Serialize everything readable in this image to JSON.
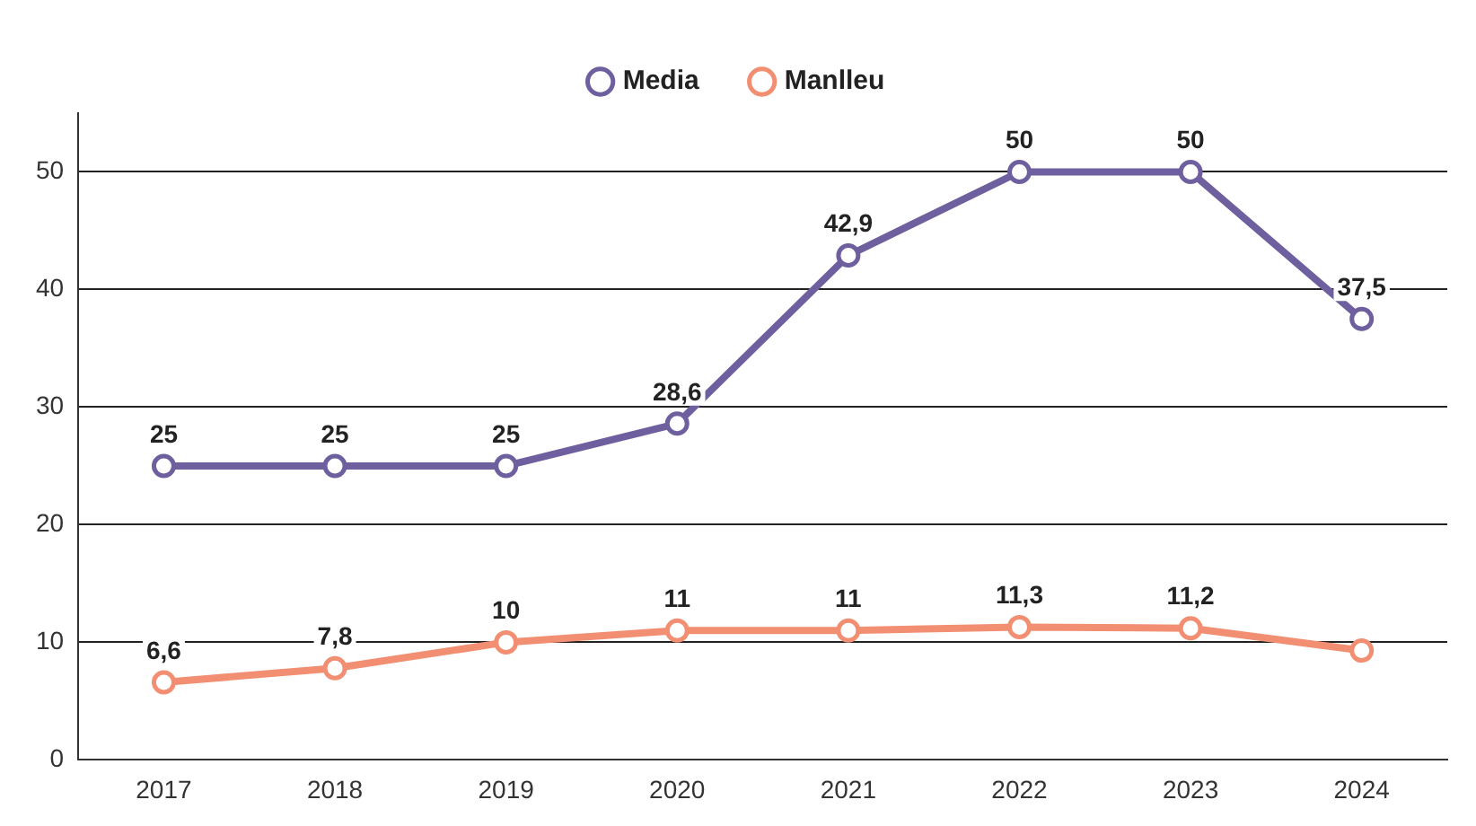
{
  "chart_data": {
    "type": "line",
    "categories": [
      "2017",
      "2018",
      "2019",
      "2020",
      "2021",
      "2022",
      "2023",
      "2024"
    ],
    "series": [
      {
        "name": "Media",
        "color": "#6e5f9e",
        "values": [
          25,
          25,
          25,
          28.6,
          42.9,
          50,
          50,
          37.5
        ],
        "value_labels": [
          "25",
          "25",
          "25",
          "28,6",
          "42,9",
          "50",
          "50",
          "37,5"
        ]
      },
      {
        "name": "Manlleu",
        "color": "#f28f72",
        "values": [
          6.6,
          7.8,
          10,
          11,
          11,
          11.3,
          11.2,
          9.3
        ],
        "value_labels": [
          "6,6",
          "7,8",
          "10",
          "11",
          "11",
          "11,3",
          "11,2",
          null
        ]
      }
    ],
    "ylim": [
      0,
      55
    ],
    "yticks": [
      0,
      10,
      20,
      30,
      40,
      50
    ],
    "grid": "y",
    "legend": "top",
    "marker": "circle",
    "line_style": "solid"
  }
}
